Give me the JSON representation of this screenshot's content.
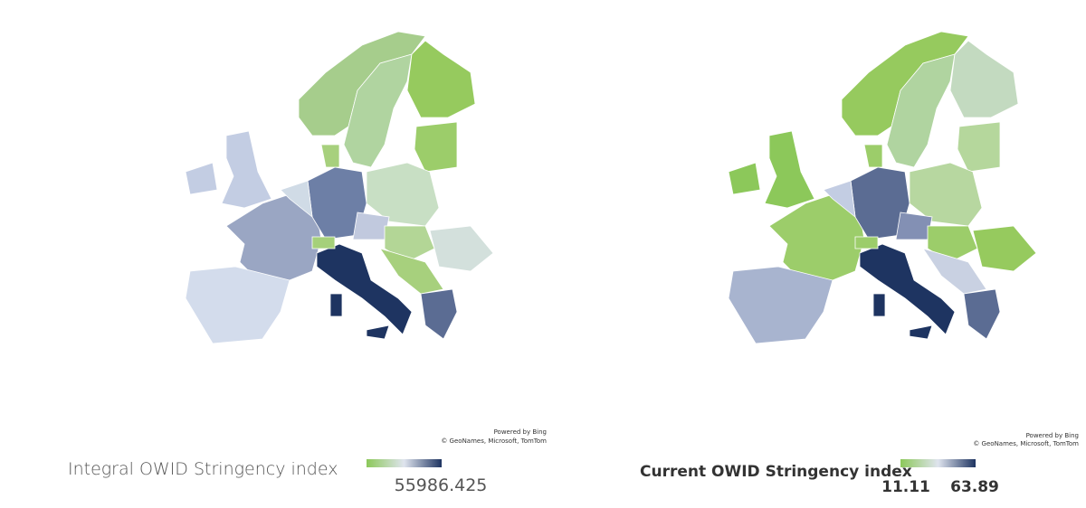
{
  "maps": [
    {
      "title": "Integral OWID Stringency index",
      "legend_labels": [
        "55986.425"
      ],
      "attribution": [
        "Powered by Bing",
        "© GeoNames, Microsoft, TomTom"
      ]
    },
    {
      "title": "Current OWID Stringency index",
      "legend_labels": [
        "11.11",
        "63.89"
      ],
      "attribution": [
        "Powered by Bing",
        "© GeoNames, Microsoft, TomTom"
      ]
    }
  ]
}
